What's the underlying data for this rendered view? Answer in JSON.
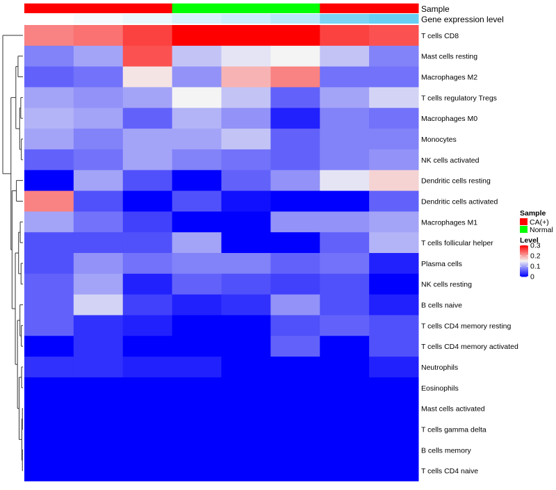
{
  "chart_data": {
    "type": "heatmap",
    "title": "",
    "annotations": [
      {
        "name": "Sample"
      },
      {
        "name": "Gene expression level"
      }
    ],
    "columns": [
      {
        "sample": "CA(+)",
        "expression_level": 0.0
      },
      {
        "sample": "CA(+)",
        "expression_level": 0.05
      },
      {
        "sample": "CA(+)",
        "expression_level": 0.12
      },
      {
        "sample": "Normal",
        "expression_level": 0.22
      },
      {
        "sample": "Normal",
        "expression_level": 0.3
      },
      {
        "sample": "Normal",
        "expression_level": 0.4
      },
      {
        "sample": "CA(+)",
        "expression_level": 0.75
      },
      {
        "sample": "CA(+)",
        "expression_level": 0.85
      }
    ],
    "rows": [
      "T cells CD8",
      "Mast cells resting",
      "Macrophages M2",
      "T cells regulatory  Tregs",
      "Macrophages M0",
      "Monocytes",
      "NK cells activated",
      "Dendritic cells resting",
      "Dendritic cells activated",
      "Macrophages M1",
      "T cells follicular helper",
      "Plasma cells",
      "NK cells resting",
      "B cells naive",
      "T cells CD4 memory resting",
      "T cells CD4 memory activated",
      "Neutrophils",
      "Eosinophils",
      "Mast cells activated",
      "T cells gamma delta",
      "B cells memory",
      "T cells CD4 naive"
    ],
    "values": [
      [
        0.22,
        0.23,
        0.26,
        0.3,
        0.3,
        0.3,
        0.26,
        0.25
      ],
      [
        0.08,
        0.1,
        0.25,
        0.12,
        0.14,
        0.15,
        0.12,
        0.08
      ],
      [
        0.06,
        0.07,
        0.16,
        0.09,
        0.19,
        0.22,
        0.07,
        0.07
      ],
      [
        0.1,
        0.09,
        0.1,
        0.15,
        0.12,
        0.06,
        0.1,
        0.13
      ],
      [
        0.11,
        0.1,
        0.06,
        0.11,
        0.09,
        0.02,
        0.08,
        0.07
      ],
      [
        0.1,
        0.08,
        0.1,
        0.1,
        0.12,
        0.06,
        0.08,
        0.08
      ],
      [
        0.06,
        0.07,
        0.1,
        0.08,
        0.07,
        0.06,
        0.08,
        0.09
      ],
      [
        0.0,
        0.1,
        0.05,
        0.0,
        0.06,
        0.09,
        0.14,
        0.17
      ],
      [
        0.22,
        0.05,
        0.0,
        0.05,
        0.01,
        0.0,
        0.0,
        0.06
      ],
      [
        0.1,
        0.07,
        0.04,
        0.0,
        0.0,
        0.09,
        0.09,
        0.1
      ],
      [
        0.05,
        0.05,
        0.05,
        0.1,
        0.0,
        0.0,
        0.06,
        0.11
      ],
      [
        0.05,
        0.09,
        0.07,
        0.08,
        0.08,
        0.06,
        0.07,
        0.02
      ],
      [
        0.06,
        0.1,
        0.02,
        0.06,
        0.05,
        0.04,
        0.05,
        0.0
      ],
      [
        0.06,
        0.13,
        0.04,
        0.02,
        0.03,
        0.09,
        0.05,
        0.02
      ],
      [
        0.06,
        0.03,
        0.02,
        0.0,
        0.0,
        0.05,
        0.06,
        0.05
      ],
      [
        0.0,
        0.03,
        0.0,
        0.0,
        0.0,
        0.06,
        0.0,
        0.05
      ],
      [
        0.03,
        0.03,
        0.02,
        0.02,
        0.0,
        0.0,
        0.0,
        0.02
      ],
      [
        0.0,
        0.0,
        0.0,
        0.0,
        0.0,
        0.0,
        0.0,
        0.0
      ],
      [
        0.0,
        0.0,
        0.0,
        0.0,
        0.0,
        0.0,
        0.0,
        0.0
      ],
      [
        0.0,
        0.0,
        0.0,
        0.0,
        0.0,
        0.0,
        0.0,
        0.0
      ],
      [
        0.0,
        0.0,
        0.0,
        0.0,
        0.0,
        0.0,
        0.0,
        0.0
      ],
      [
        0.0,
        0.0,
        0.0,
        0.0,
        0.0,
        0.0,
        0.0,
        0.0
      ]
    ],
    "color_scale": {
      "name": "Level",
      "min": 0,
      "max": 0.3,
      "low_color": "#0000ff",
      "mid_color": "#f4f4f4",
      "high_color": "#ff0000",
      "ticks": [
        {
          "value": 0.3,
          "label": "0.3"
        },
        {
          "value": 0.2,
          "label": "0.2"
        },
        {
          "value": 0.1,
          "label": "0.1"
        },
        {
          "value": 0,
          "label": "0"
        }
      ]
    },
    "sample_legend": {
      "title": "Sample",
      "entries": [
        {
          "label": "CA(+)",
          "color": "#ff0000"
        },
        {
          "label": "Normal",
          "color": "#00ff00"
        }
      ]
    },
    "expression_colors": {
      "low": "#ffffff",
      "high": "#4fc6f0"
    },
    "row_dendrogram": [
      {
        "x": 3.7,
        "children": [
          {
            "leaf": 0
          },
          {
            "x": 2.2,
            "children": [
              {
                "x": 1.3,
                "children": [
                  {
                    "x": 0.9,
                    "children": [
                      {
                        "leaf": 1
                      },
                      {
                        "leaf": 2
                      }
                    ]
                  },
                  {
                    "x": 0.6,
                    "children": [
                      {
                        "x": 0.4,
                        "children": [
                          {
                            "leaf": 3
                          },
                          {
                            "leaf": 4
                          }
                        ]
                      },
                      {
                        "x": 0.3,
                        "children": [
                          {
                            "leaf": 5
                          },
                          {
                            "leaf": 6
                          }
                        ]
                      }
                    ]
                  }
                ]
              },
              {
                "x": 2.0,
                "children": [
                  {
                    "x": 1.2,
                    "children": [
                      {
                        "leaf": 7
                      },
                      {
                        "leaf": 8
                      }
                    ]
                  },
                  {
                    "x": 1.4,
                    "children": [
                      {
                        "x": 0.8,
                        "children": [
                          {
                            "x": 0.5,
                            "children": [
                              {
                                "leaf": 9
                              },
                              {
                                "leaf": 10
                              }
                            ]
                          },
                          {
                            "x": 0.35,
                            "children": [
                              {
                                "leaf": 11
                              },
                              {
                                "leaf": 12
                              }
                            ]
                          }
                        ]
                      },
                      {
                        "x": 1.0,
                        "children": [
                          {
                            "x": 0.55,
                            "children": [
                              {
                                "leaf": 13
                              },
                              {
                                "x": 0.3,
                                "children": [
                                  {
                                    "leaf": 14
                                  },
                                  {
                                    "leaf": 15
                                  }
                                ]
                              }
                            ]
                          },
                          {
                            "x": 0.7,
                            "children": [
                              {
                                "x": 0.25,
                                "children": [
                                  {
                                    "leaf": 16
                                  },
                                  {
                                    "leaf": 17
                                  }
                                ]
                              },
                              {
                                "x": 0.2,
                                "children": [
                                  {
                                    "x": 0.1,
                                    "children": [
                                      {
                                        "leaf": 18
                                      },
                                      {
                                        "leaf": 19
                                      }
                                    ]
                                  },
                                  {
                                    "x": 0.1,
                                    "children": [
                                      {
                                        "leaf": 20
                                      },
                                      {
                                        "leaf": 21
                                      }
                                    ]
                                  }
                                ]
                              }
                            ]
                          }
                        ]
                      }
                    ]
                  }
                ]
              }
            ]
          }
        ]
      }
    ]
  }
}
